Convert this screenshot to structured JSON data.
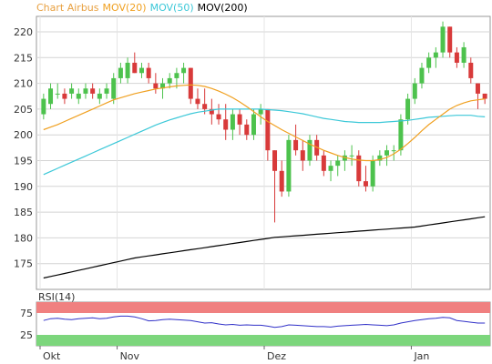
{
  "chart_data": [
    {
      "type": "candlestick",
      "title": "Chart Airbus",
      "legend": [
        {
          "label": "Chart Airbus",
          "color": "#e8a040"
        },
        {
          "label": "MOV(20)",
          "color": "#f0a020"
        },
        {
          "label": "MOV(50)",
          "color": "#3cc8d8"
        },
        {
          "label": "MOV(200)",
          "color": "#000000"
        }
      ],
      "ylim": [
        170,
        223
      ],
      "y_ticks": [
        175,
        180,
        185,
        190,
        195,
        200,
        205,
        210,
        215,
        220
      ],
      "x_ticks": [
        "Okt",
        "Nov",
        "Dez",
        "Jan"
      ],
      "up_color": "#4dc24d",
      "down_color": "#d83a3a",
      "candles": [
        [
          204,
          208,
          203,
          207
        ],
        [
          206,
          210,
          205,
          209
        ],
        [
          208,
          210,
          207,
          208
        ],
        [
          208,
          209,
          206,
          207
        ],
        [
          208,
          210,
          207,
          209
        ],
        [
          207,
          209,
          206,
          208
        ],
        [
          208,
          210,
          207,
          209
        ],
        [
          209,
          210,
          207,
          208
        ],
        [
          207,
          209,
          206,
          208
        ],
        [
          208,
          210,
          207,
          209
        ],
        [
          207,
          212,
          206,
          211
        ],
        [
          211,
          214,
          210,
          213
        ],
        [
          211,
          215,
          210,
          214
        ],
        [
          214,
          216,
          212,
          212
        ],
        [
          212,
          214,
          211,
          213
        ],
        [
          213,
          214,
          210,
          211
        ],
        [
          210,
          212,
          208,
          209
        ],
        [
          209,
          211,
          207,
          210
        ],
        [
          210,
          212,
          209,
          211
        ],
        [
          211,
          213,
          209,
          212
        ],
        [
          212,
          214,
          210,
          213
        ],
        [
          213,
          213,
          206,
          207
        ],
        [
          207,
          209,
          205,
          206
        ],
        [
          206,
          209,
          204,
          205
        ],
        [
          205,
          207,
          202,
          204
        ],
        [
          204,
          206,
          202,
          203
        ],
        [
          203,
          206,
          199,
          201
        ],
        [
          201,
          205,
          199,
          204
        ],
        [
          204,
          205,
          200,
          202
        ],
        [
          202,
          203,
          199,
          200
        ],
        [
          200,
          205,
          199,
          204
        ],
        [
          204,
          206,
          202,
          205
        ],
        [
          205,
          205,
          195,
          197
        ],
        [
          197,
          197,
          183,
          193
        ],
        [
          193,
          195,
          188,
          189
        ],
        [
          189,
          200,
          188,
          199
        ],
        [
          199,
          202,
          196,
          197
        ],
        [
          197,
          199,
          193,
          195
        ],
        [
          195,
          200,
          194,
          199
        ],
        [
          199,
          200,
          195,
          196
        ],
        [
          196,
          197,
          192,
          193
        ],
        [
          193,
          195,
          191,
          194
        ],
        [
          194,
          196,
          192,
          195
        ],
        [
          195,
          197,
          193,
          196
        ],
        [
          196,
          198,
          194,
          196
        ],
        [
          196,
          197,
          190,
          191
        ],
        [
          191,
          194,
          189,
          190
        ],
        [
          190,
          196,
          189,
          195
        ],
        [
          195,
          197,
          194,
          196
        ],
        [
          196,
          198,
          194,
          197
        ],
        [
          197,
          198,
          195,
          197
        ],
        [
          197,
          204,
          196,
          203
        ],
        [
          203,
          208,
          202,
          207
        ],
        [
          207,
          211,
          206,
          210
        ],
        [
          210,
          214,
          209,
          213
        ],
        [
          213,
          216,
          212,
          215
        ],
        [
          215,
          217,
          213,
          216
        ],
        [
          216,
          222,
          215,
          221
        ],
        [
          221,
          221,
          215,
          216
        ],
        [
          216,
          217,
          213,
          214
        ],
        [
          214,
          218,
          213,
          217
        ],
        [
          214,
          215,
          210,
          211
        ],
        [
          210,
          210,
          205,
          208
        ],
        [
          208,
          208,
          206,
          207
        ]
      ],
      "mov20": [
        201,
        201.5,
        202,
        202.6,
        203.2,
        203.8,
        204.4,
        205,
        205.6,
        206.2,
        206.8,
        207.2,
        207.6,
        208,
        208.3,
        208.6,
        208.9,
        209.1,
        209.3,
        209.5,
        209.6,
        209.7,
        209.6,
        209.4,
        209.0,
        208.5,
        207.9,
        207.2,
        206.4,
        205.5,
        204.5,
        203.5,
        202.6,
        201.8,
        201,
        200.3,
        199.6,
        198.9,
        198.2,
        197.6,
        197,
        196.5,
        196,
        195.6,
        195.3,
        195.1,
        195,
        195,
        195.2,
        195.6,
        196.3,
        197.2,
        198.3,
        199.5,
        200.8,
        202,
        203,
        204,
        205,
        205.7,
        206.2,
        206.6,
        206.8,
        207
      ],
      "mov50": [
        192.3,
        192.9,
        193.5,
        194.1,
        194.7,
        195.3,
        195.9,
        196.5,
        197.1,
        197.7,
        198.3,
        198.9,
        199.5,
        200.1,
        200.7,
        201.3,
        201.9,
        202.4,
        202.9,
        203.3,
        203.7,
        204.1,
        204.4,
        204.6,
        204.8,
        205,
        205,
        205,
        205,
        205,
        205,
        205,
        204.9,
        204.8,
        204.7,
        204.5,
        204.3,
        204.1,
        203.8,
        203.5,
        203.2,
        203,
        202.8,
        202.6,
        202.5,
        202.4,
        202.4,
        202.4,
        202.4,
        202.5,
        202.6,
        202.7,
        202.8,
        203,
        203.2,
        203.4,
        203.5,
        203.6,
        203.7,
        203.8,
        203.8,
        203.8,
        203.6,
        203.5
      ],
      "mov200": [
        172.2,
        172.5,
        172.8,
        173.1,
        173.4,
        173.7,
        174,
        174.3,
        174.6,
        174.9,
        175.2,
        175.5,
        175.8,
        176.1,
        176.3,
        176.5,
        176.7,
        176.9,
        177.1,
        177.3,
        177.5,
        177.7,
        177.9,
        178.1,
        178.3,
        178.5,
        178.7,
        178.9,
        179.1,
        179.3,
        179.5,
        179.7,
        179.9,
        180.1,
        180.2,
        180.3,
        180.4,
        180.5,
        180.6,
        180.7,
        180.8,
        180.9,
        181,
        181.1,
        181.2,
        181.3,
        181.4,
        181.5,
        181.6,
        181.7,
        181.8,
        181.9,
        182,
        182.1,
        182.3,
        182.5,
        182.7,
        182.9,
        183.1,
        183.3,
        183.5,
        183.7,
        183.9,
        184.1
      ]
    },
    {
      "type": "line",
      "title": "RSI(14)",
      "ylim": [
        0,
        100
      ],
      "y_ticks": [
        25,
        75
      ],
      "overbought": 75,
      "oversold": 25,
      "band_colors": {
        "upper": "#f08080",
        "lower": "#7cd67c"
      },
      "line_color": "#3030c8",
      "values": [
        58,
        62,
        63,
        61,
        60,
        62,
        63,
        64,
        62,
        63,
        66,
        68,
        68,
        66,
        62,
        57,
        58,
        60,
        61,
        60,
        59,
        58,
        55,
        52,
        53,
        50,
        48,
        49,
        47,
        48,
        47,
        47,
        45,
        42,
        44,
        48,
        47,
        46,
        45,
        44,
        44,
        43,
        45,
        46,
        47,
        48,
        49,
        48,
        47,
        46,
        48,
        52,
        55,
        58,
        60,
        62,
        63,
        65,
        64,
        58,
        56,
        54,
        52,
        52
      ]
    }
  ]
}
